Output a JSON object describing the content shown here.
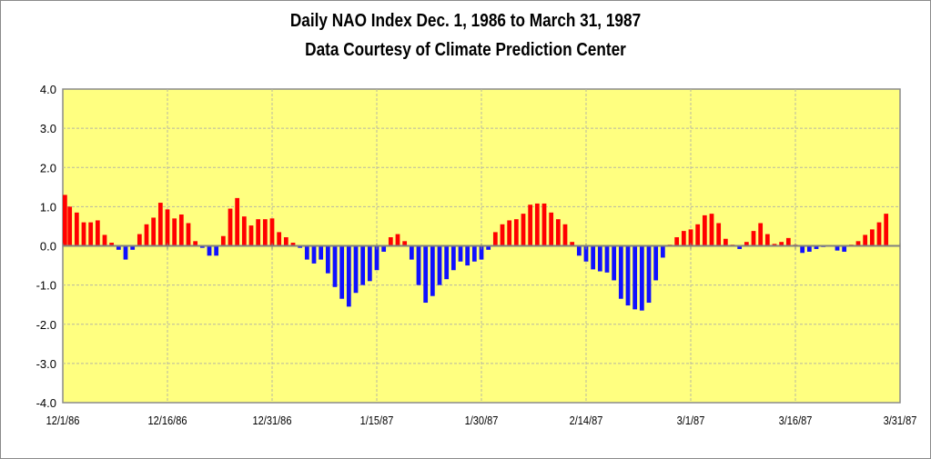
{
  "chart_data": {
    "type": "bar",
    "title": "Daily NAO Index Dec. 1, 1986 to March 31, 1987",
    "subtitle": "Data Courtesy of Climate Prediction Center",
    "xlabel": "",
    "ylabel": "",
    "ylim": [
      -4.0,
      4.0
    ],
    "yticks": [
      "4.0",
      "3.0",
      "2.0",
      "1.0",
      "0.0",
      "-1.0",
      "-2.0",
      "-3.0",
      "-4.0"
    ],
    "ytick_values": [
      4,
      3,
      2,
      1,
      0,
      -1,
      -2,
      -3,
      -4
    ],
    "xticks": [
      "12/1/86",
      "12/16/86",
      "12/31/86",
      "1/15/87",
      "1/30/87",
      "2/14/87",
      "3/1/87",
      "3/16/87",
      "3/31/87"
    ],
    "xtick_day_index": [
      0,
      15,
      30,
      45,
      60,
      75,
      90,
      105,
      120
    ],
    "start_date": "12/1/86",
    "end_date": "3/31/87",
    "grid": true,
    "legend": "none",
    "colors": {
      "positive": "#ff0000",
      "negative": "#1010ff",
      "plot_background": "#ffff80"
    },
    "values": [
      1.3,
      1.0,
      0.85,
      0.6,
      0.6,
      0.65,
      0.28,
      0.08,
      -0.1,
      -0.35,
      -0.1,
      0.3,
      0.55,
      0.72,
      1.1,
      0.93,
      0.7,
      0.8,
      0.58,
      0.12,
      -0.05,
      -0.25,
      -0.25,
      0.25,
      0.95,
      1.22,
      0.75,
      0.52,
      0.68,
      0.68,
      0.7,
      0.35,
      0.22,
      0.08,
      -0.05,
      -0.35,
      -0.45,
      -0.35,
      -0.7,
      -1.05,
      -1.35,
      -1.55,
      -1.2,
      -1.0,
      -0.9,
      -0.62,
      -0.15,
      0.22,
      0.3,
      0.12,
      -0.35,
      -1.0,
      -1.45,
      -1.28,
      -1.0,
      -0.85,
      -0.62,
      -0.4,
      -0.5,
      -0.4,
      -0.35,
      -0.1,
      0.35,
      0.55,
      0.65,
      0.68,
      0.82,
      1.05,
      1.08,
      1.08,
      0.85,
      0.68,
      0.55,
      0.1,
      -0.25,
      -0.4,
      -0.6,
      -0.65,
      -0.68,
      -0.88,
      -1.35,
      -1.52,
      -1.62,
      -1.65,
      -1.45,
      -0.88,
      -0.3,
      0.03,
      0.22,
      0.38,
      0.42,
      0.55,
      0.78,
      0.82,
      0.58,
      0.18,
      0.03,
      -0.08,
      0.1,
      0.38,
      0.58,
      0.3,
      0.05,
      0.1,
      0.2,
      0.03,
      -0.18,
      -0.15,
      -0.08,
      -0.03,
      0.0,
      -0.12,
      -0.15,
      0.03,
      0.12,
      0.28,
      0.42,
      0.6,
      0.82,
      0.0,
      0.0
    ]
  }
}
